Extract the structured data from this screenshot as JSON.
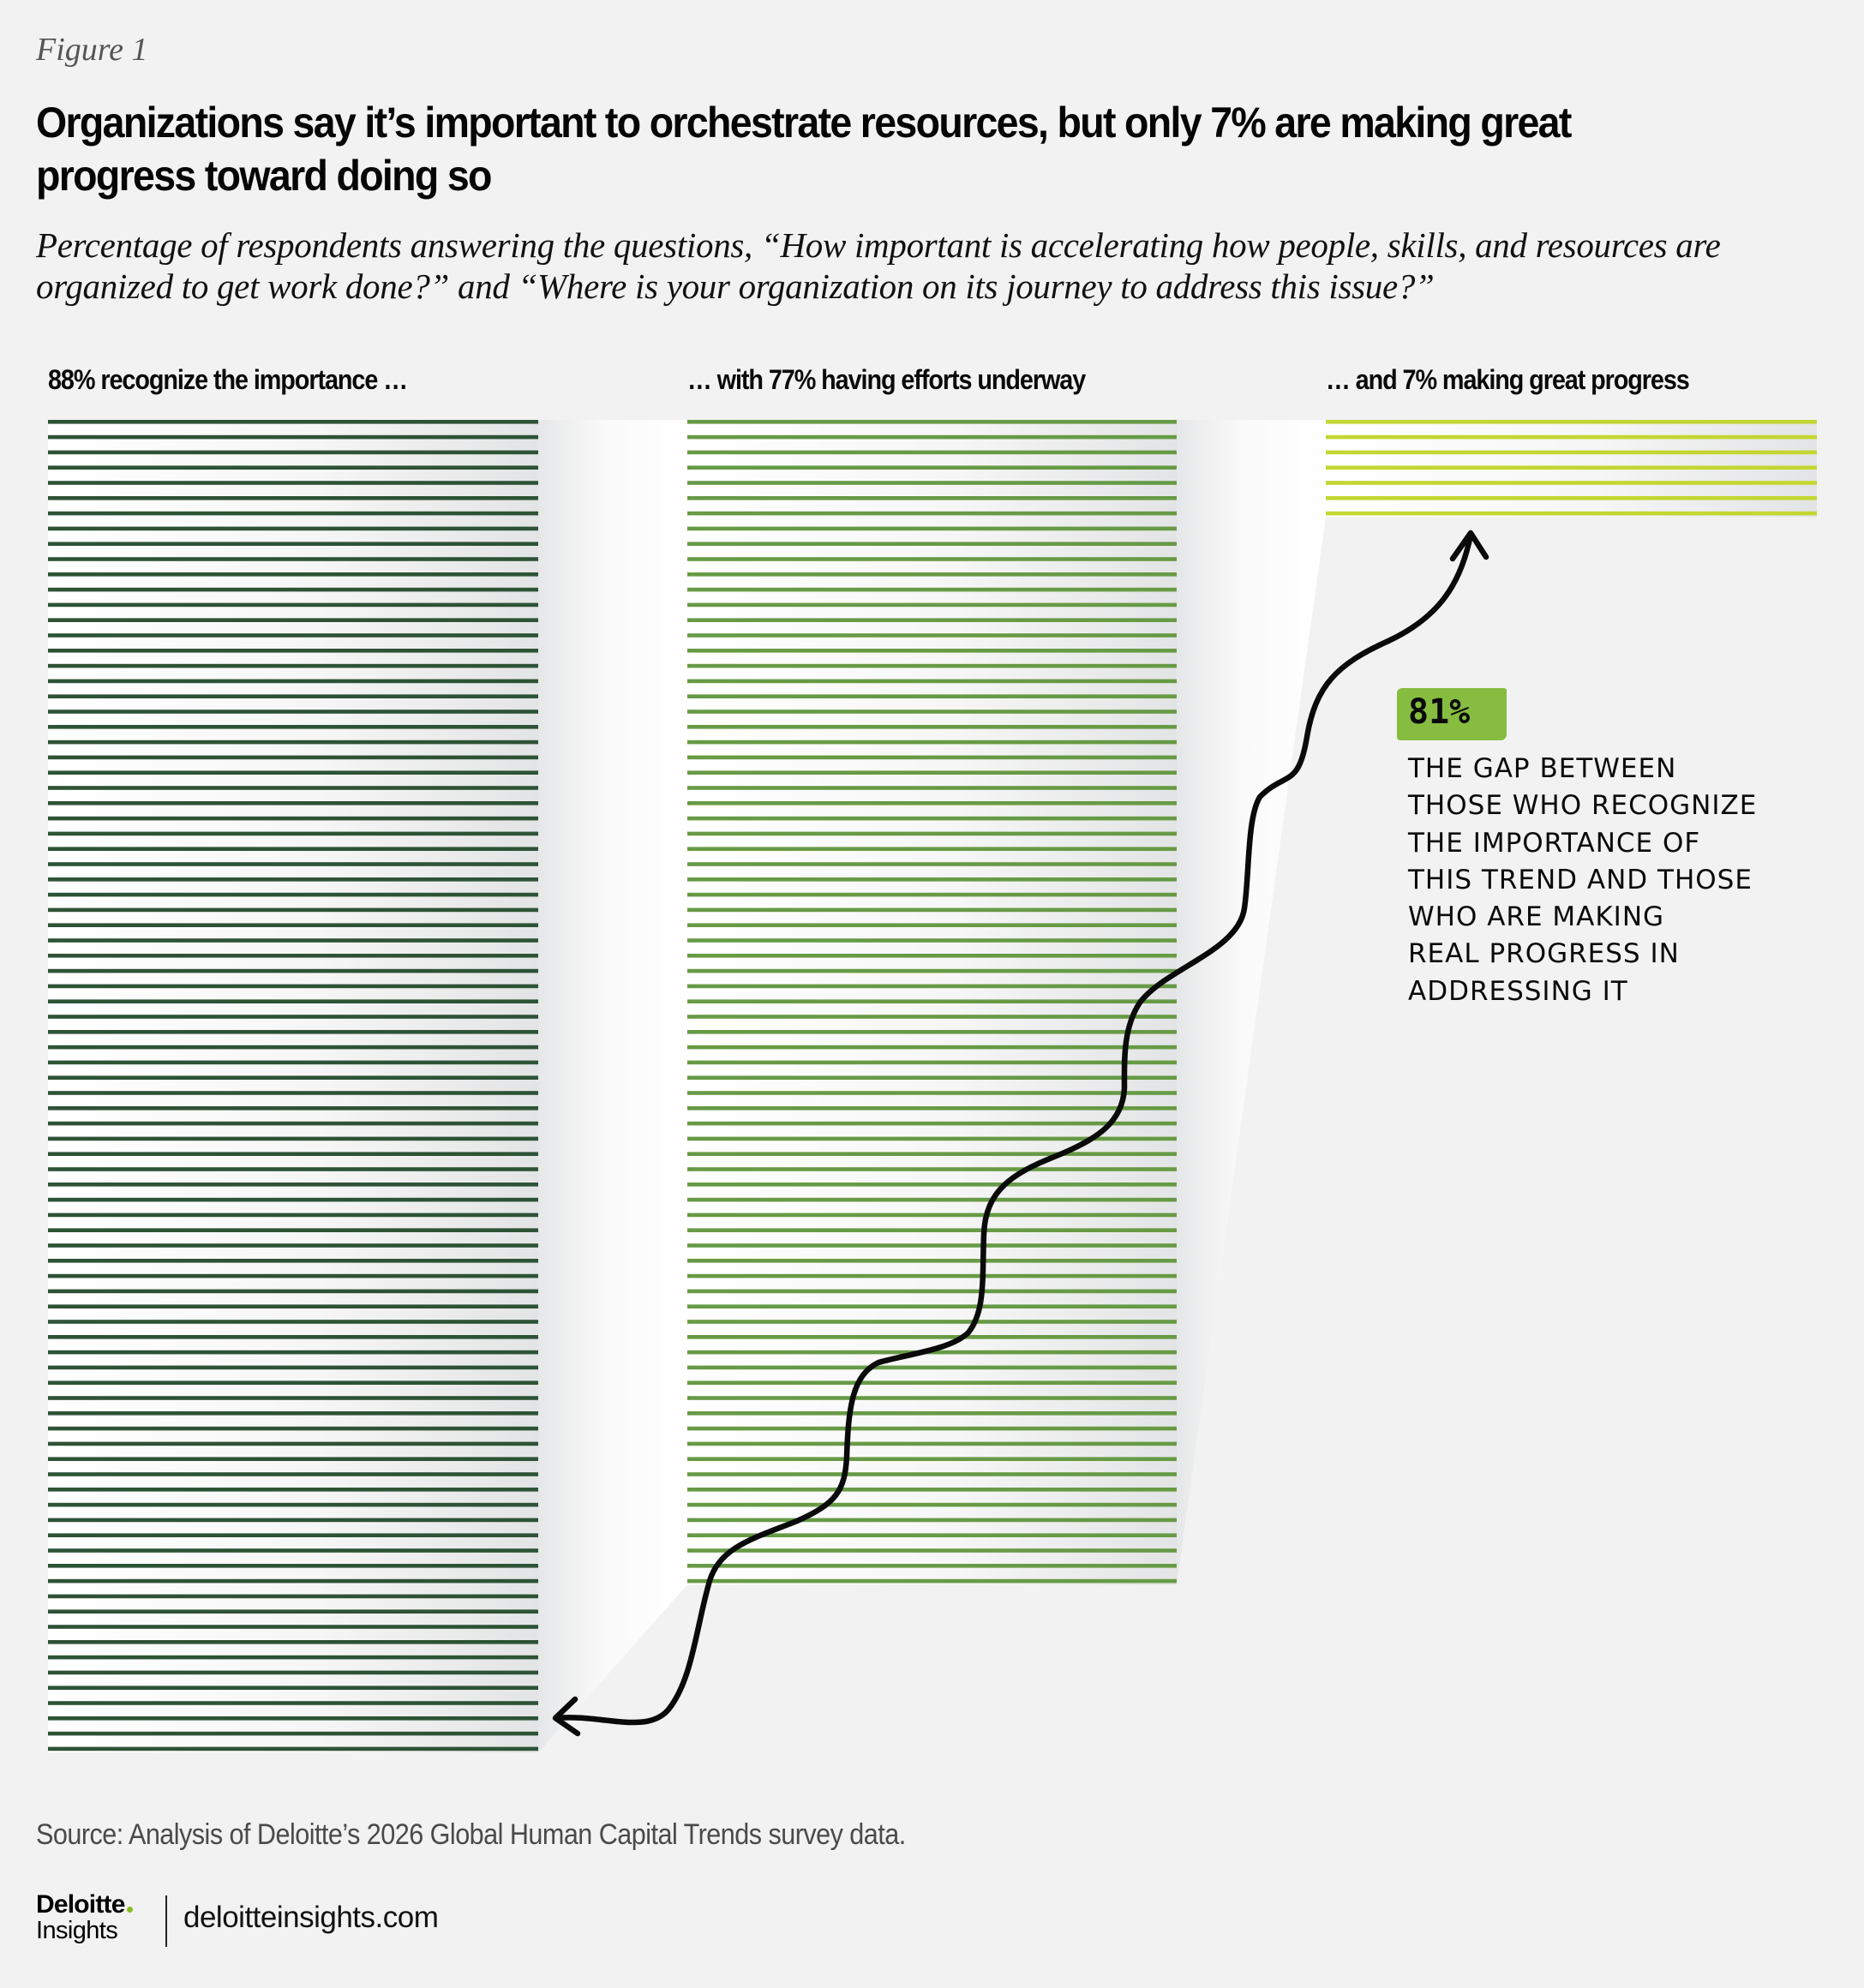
{
  "figure_label": "Figure 1",
  "title": "Organizations say it’s important to orchestrate resources, but only 7% are making great progress toward doing so",
  "subtitle": "Percentage of respondents answering the questions, “How important is accelerating how people, skills, and resources are organized to get work done?” and “Where is your organization on its journey to address this issue?”",
  "chart_data": {
    "type": "bar",
    "title": "Organizations say it’s important to orchestrate resources, but only 7% are making great progress toward doing so",
    "encoding": "each horizontal line represents 1% of respondents",
    "categories": [
      "88% recognize the importance …",
      "… with 77% having efforts underway",
      "… and 7% making great progress"
    ],
    "values": [
      88,
      77,
      7
    ],
    "unit": "%",
    "colors": [
      "#2d5336",
      "#679a45",
      "#c4d631"
    ],
    "ylim": [
      0,
      100
    ],
    "grid": false,
    "annotation": {
      "value": "81%",
      "text": "The gap between those who recognize the importance of this trend and those who are making real progress in addressing it",
      "arrow": "double-headed squiggle from the 7% column down to the 88% column"
    },
    "xlabel": "",
    "ylabel": ""
  },
  "columns": [
    {
      "label": "88% recognize the importance …",
      "value": 88,
      "color": "#2d5336"
    },
    {
      "label": "… with 77% having efforts underway",
      "value": 77,
      "color": "#679a45"
    },
    {
      "label": "… and 7% making great progress",
      "value": 7,
      "color": "#c4d631"
    }
  ],
  "annotation": {
    "badge": "81%",
    "badge_color": "#86bc40",
    "lines": [
      "The gap between",
      "those who recognize",
      "the importance of",
      "this trend and those",
      "who are making",
      "real progress in",
      "addressing it"
    ]
  },
  "source": "Source: Analysis of Deloitte’s 2026 Global Human Capital Trends survey data.",
  "footer": {
    "brand": "Deloitte",
    "brand_sub": "Insights",
    "url": "deloitteinsights.com",
    "accent": "#86bc25"
  }
}
